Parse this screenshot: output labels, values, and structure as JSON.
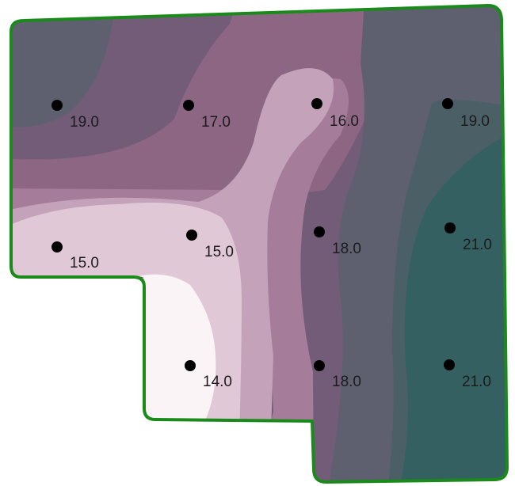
{
  "map": {
    "boundary_color": "#1a8a1a",
    "palette": [
      "#fbf4f7",
      "#e0c8d6",
      "#c4a2b9",
      "#a57d9a",
      "#8c6683",
      "#725c78",
      "#5e6070",
      "#4b5f67",
      "#356062"
    ],
    "sample_points": [
      {
        "id": "r1c1",
        "value": "19.0"
      },
      {
        "id": "r1c2",
        "value": "17.0"
      },
      {
        "id": "r1c3",
        "value": "16.0"
      },
      {
        "id": "r1c4",
        "value": "19.0"
      },
      {
        "id": "r2c1",
        "value": "15.0"
      },
      {
        "id": "r2c2",
        "value": "15.0"
      },
      {
        "id": "r2c3",
        "value": "18.0"
      },
      {
        "id": "r2c4",
        "value": "21.0"
      },
      {
        "id": "r3c2",
        "value": "14.0"
      },
      {
        "id": "r3c3",
        "value": "18.0"
      },
      {
        "id": "r3c4",
        "value": "21.0"
      }
    ]
  }
}
